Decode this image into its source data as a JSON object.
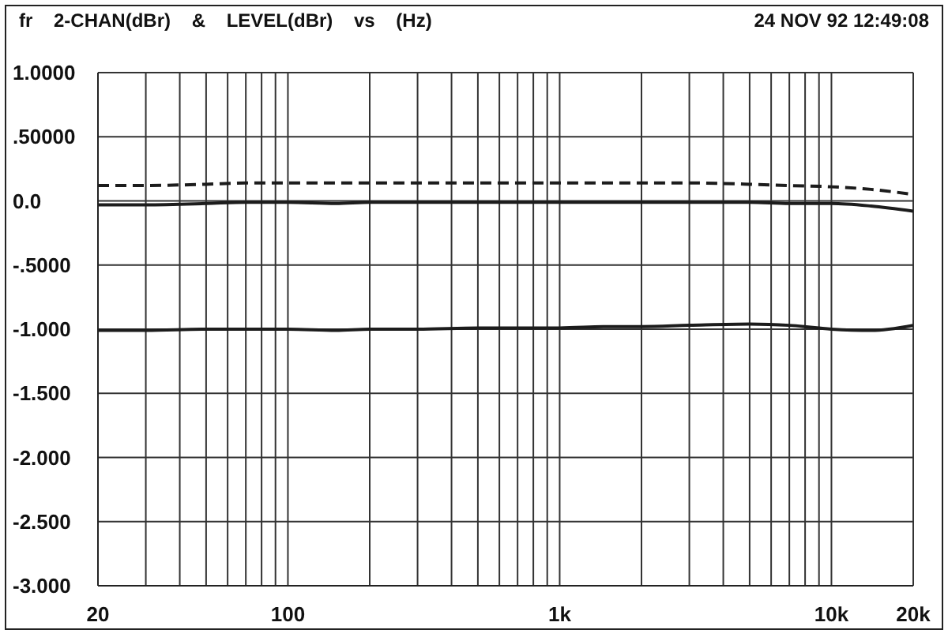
{
  "chart_data": {
    "type": "line",
    "title": "fr 2-CHAN(dBr) & LEVEL(dBr) vs (Hz)",
    "annotations": [
      "24 NOV 92 12:49:08"
    ],
    "x": [
      20,
      30,
      50,
      70,
      100,
      150,
      200,
      300,
      500,
      700,
      1000,
      1500,
      2000,
      3000,
      5000,
      7000,
      10000,
      14000,
      20000
    ],
    "series": [
      {
        "color": "#1c1c1c",
        "line_style": "dashed",
        "values": [
          0.12,
          0.12,
          0.13,
          0.14,
          0.14,
          0.14,
          0.14,
          0.14,
          0.14,
          0.14,
          0.14,
          0.14,
          0.14,
          0.14,
          0.13,
          0.12,
          0.11,
          0.09,
          0.05
        ]
      },
      {
        "color": "#1c1c1c",
        "line_style": "solid",
        "values": [
          -0.03,
          -0.03,
          -0.02,
          -0.01,
          -0.01,
          -0.02,
          -0.01,
          -0.01,
          -0.01,
          -0.01,
          -0.01,
          -0.01,
          -0.01,
          -0.01,
          -0.01,
          -0.02,
          -0.02,
          -0.04,
          -0.08
        ]
      },
      {
        "color": "#1c1c1c",
        "line_style": "solid",
        "values": [
          -1.01,
          -1.01,
          -1.0,
          -1.0,
          -1.0,
          -1.01,
          -1.0,
          -1.0,
          -0.99,
          -0.99,
          -0.99,
          -0.98,
          -0.98,
          -0.97,
          -0.96,
          -0.97,
          -1.0,
          -1.01,
          -0.97
        ]
      }
    ],
    "xlim": [
      20,
      20000
    ],
    "xticks": [
      20,
      {
        "value": 30,
        "label": null
      },
      {
        "value": 40,
        "label": null
      },
      {
        "value": 50,
        "label": null
      },
      {
        "value": 60,
        "label": null
      },
      {
        "value": 70,
        "label": null
      },
      {
        "value": 80,
        "label": null
      },
      {
        "value": 90,
        "label": null
      },
      100,
      {
        "value": 200,
        "label": null
      },
      {
        "value": 300,
        "label": null
      },
      {
        "value": 400,
        "label": null
      },
      {
        "value": 500,
        "label": null
      },
      {
        "value": 600,
        "label": null
      },
      {
        "value": 700,
        "label": null
      },
      {
        "value": 800,
        "label": null
      },
      {
        "value": 900,
        "label": null
      },
      {
        "value": 1000,
        "label": "1k"
      },
      {
        "value": 2000,
        "label": null
      },
      {
        "value": 3000,
        "label": null
      },
      {
        "value": 4000,
        "label": null
      },
      {
        "value": 5000,
        "label": null
      },
      {
        "value": 6000,
        "label": null
      },
      {
        "value": 7000,
        "label": null
      },
      {
        "value": 8000,
        "label": null
      },
      {
        "value": 9000,
        "label": null
      },
      {
        "value": 10000,
        "label": "10k"
      },
      {
        "value": 20000,
        "label": "20k"
      }
    ],
    "ylim": [
      -3,
      1
    ],
    "yticks": [
      {
        "value": 1,
        "label": "1.0000"
      },
      {
        "value": 0.5,
        "label": ".50000"
      },
      {
        "value": 0,
        "label": "0.0"
      },
      {
        "value": -0.5,
        "label": "-.5000"
      },
      {
        "value": -1,
        "label": "-1.000"
      },
      {
        "value": -1.5,
        "label": "-1.500"
      },
      {
        "value": -2,
        "label": "-2.000"
      },
      {
        "value": -2.5,
        "label": "-2.500"
      },
      {
        "value": -3,
        "label": "-3.000"
      }
    ],
    "log": "x",
    "grid": true
  }
}
